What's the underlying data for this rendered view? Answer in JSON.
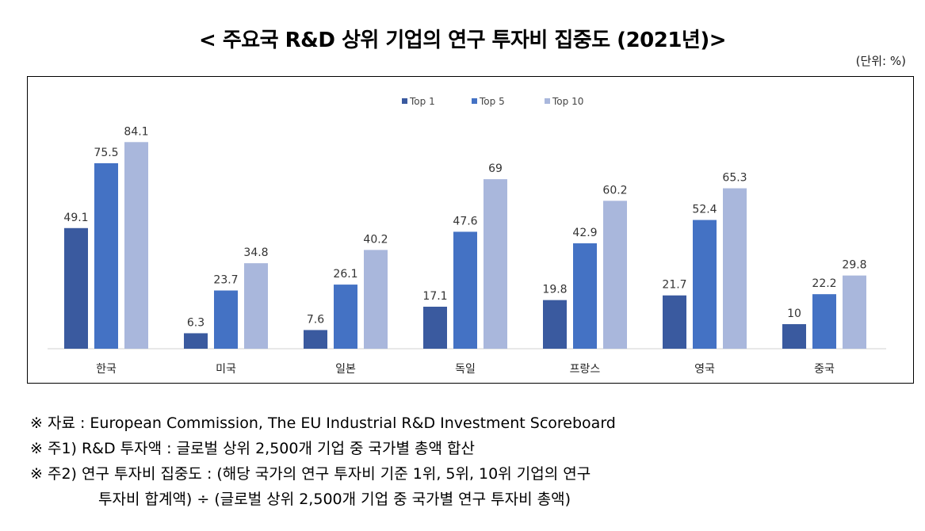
{
  "title": "< 주요국 R&D 상위 기업의 연구 투자비 집중도 (2021년)>",
  "unit": "(단위: %)",
  "colors": {
    "top1": "#3a5a9f",
    "top5": "#4472c4",
    "top10": "#a9b7dc"
  },
  "chart_data": {
    "type": "bar",
    "categories": [
      "한국",
      "미국",
      "일본",
      "독일",
      "프랑스",
      "영국",
      "중국"
    ],
    "series": [
      {
        "name": "Top 1",
        "values": [
          49.1,
          6.3,
          7.6,
          17.1,
          19.8,
          21.7,
          10
        ]
      },
      {
        "name": "Top 5",
        "values": [
          75.5,
          23.7,
          26.1,
          47.6,
          42.9,
          52.4,
          22.2
        ]
      },
      {
        "name": "Top 10",
        "values": [
          84.1,
          34.8,
          40.2,
          69,
          60.2,
          65.3,
          29.8
        ]
      }
    ],
    "legend_position": "top-center",
    "ylim": [
      0,
      90
    ],
    "grid": false
  },
  "notes": {
    "line1": "※ 자료 : European Commission, The EU Industrial R&D Investment Scoreboard",
    "line2": "※ 주1) R&D 투자액 : 글로벌 상위 2,500개 기업 중 국가별 총액 합산",
    "line3": "※ 주2) 연구 투자비 집중도 : (해당 국가의 연구 투자비 기준 1위, 5위, 10위 기업의 연구",
    "line4": "투자비 합계액) ÷ (글로벌 상위 2,500개 기업 중 국가별 연구 투자비 총액)"
  }
}
